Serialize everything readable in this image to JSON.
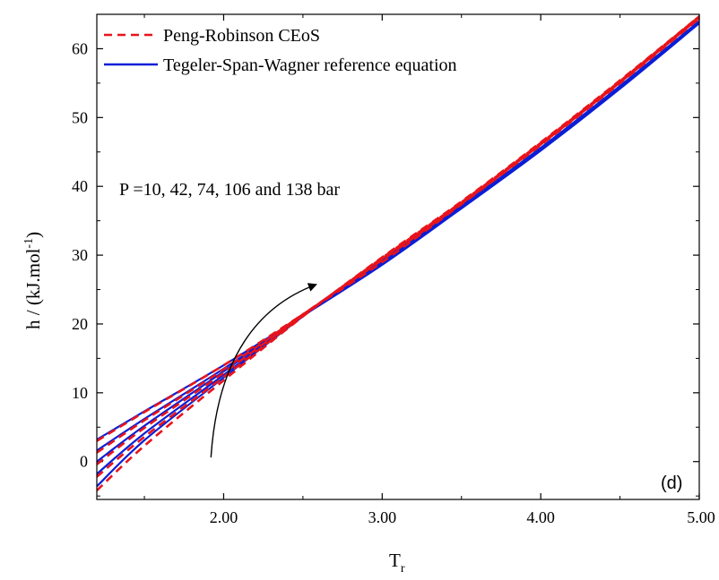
{
  "chart_data": {
    "type": "line",
    "xlabel": {
      "main": "T",
      "sub": "r"
    },
    "ylabel": {
      "main": "h / (kJ.mol",
      "sup": "-1",
      "close": ")"
    },
    "xlim": [
      1.2,
      5.0
    ],
    "ylim": [
      -5.5,
      65
    ],
    "xticks": [
      2.0,
      3.0,
      4.0,
      5.0
    ],
    "xtick_labels": [
      "2.00",
      "3.00",
      "4.00",
      "5.00"
    ],
    "yticks": [
      0,
      10,
      20,
      30,
      40,
      50,
      60
    ],
    "ytick_labels": [
      "0",
      "10",
      "20",
      "30",
      "40",
      "50",
      "60"
    ],
    "legend": {
      "position": "top-left",
      "entries": [
        {
          "label": "Peng-Robinson CEoS",
          "style": "dashed",
          "color": "#e8141b"
        },
        {
          "label": "Tegeler-Span-Wagner reference equation",
          "style": "solid",
          "color": "#0a1fd6"
        }
      ]
    },
    "annotation": "P =10, 42, 74, 106 and 138 bar",
    "panel_label": "(d)",
    "pressures": [
      10,
      42,
      74,
      106,
      138
    ],
    "x": [
      1.2,
      1.5,
      2.0,
      2.5,
      3.0,
      3.5,
      4.0,
      4.5,
      5.0
    ],
    "series": [
      {
        "name": "Tegeler-Span-Wagner reference equation",
        "pressure": 10,
        "values": [
          3.2,
          7.3,
          14.0,
          21.2,
          28.6,
          36.8,
          45.2,
          54.2,
          63.7
        ]
      },
      {
        "name": "Tegeler-Span-Wagner reference equation",
        "pressure": 42,
        "values": [
          1.6,
          6.2,
          13.5,
          21.2,
          28.9,
          36.9,
          45.3,
          54.3,
          63.8
        ]
      },
      {
        "name": "Tegeler-Span-Wagner reference equation",
        "pressure": 74,
        "values": [
          0.0,
          5.2,
          13.1,
          21.2,
          29.1,
          37.0,
          45.4,
          54.4,
          63.9
        ]
      },
      {
        "name": "Tegeler-Span-Wagner reference equation",
        "pressure": 106,
        "values": [
          -1.8,
          4.1,
          12.6,
          21.2,
          29.3,
          37.1,
          45.5,
          54.5,
          64.0
        ]
      },
      {
        "name": "Tegeler-Span-Wagner reference equation",
        "pressure": 138,
        "values": [
          -3.6,
          3.1,
          12.2,
          21.1,
          29.4,
          37.2,
          45.6,
          54.6,
          64.0
        ]
      },
      {
        "name": "Peng-Robinson CEoS",
        "pressure": 10,
        "values": [
          3.0,
          7.2,
          14.0,
          21.4,
          29.0,
          37.4,
          46.0,
          55.0,
          64.4
        ]
      },
      {
        "name": "Peng-Robinson CEoS",
        "pressure": 42,
        "values": [
          1.3,
          6.0,
          13.4,
          21.4,
          29.3,
          37.5,
          46.1,
          55.1,
          64.5
        ]
      },
      {
        "name": "Peng-Robinson CEoS",
        "pressure": 74,
        "values": [
          -0.4,
          4.9,
          12.9,
          21.3,
          29.5,
          37.6,
          46.2,
          55.2,
          64.6
        ]
      },
      {
        "name": "Peng-Robinson CEoS",
        "pressure": 106,
        "values": [
          -2.2,
          3.6,
          12.3,
          21.2,
          29.6,
          37.7,
          46.3,
          55.3,
          64.7
        ]
      },
      {
        "name": "Peng-Robinson CEoS",
        "pressure": 138,
        "values": [
          -4.2,
          2.3,
          11.8,
          21.1,
          29.7,
          37.8,
          46.4,
          55.4,
          64.7
        ]
      }
    ],
    "arrow": {
      "from": [
        1.92,
        0.6
      ],
      "to": [
        2.58,
        25.7
      ]
    }
  }
}
